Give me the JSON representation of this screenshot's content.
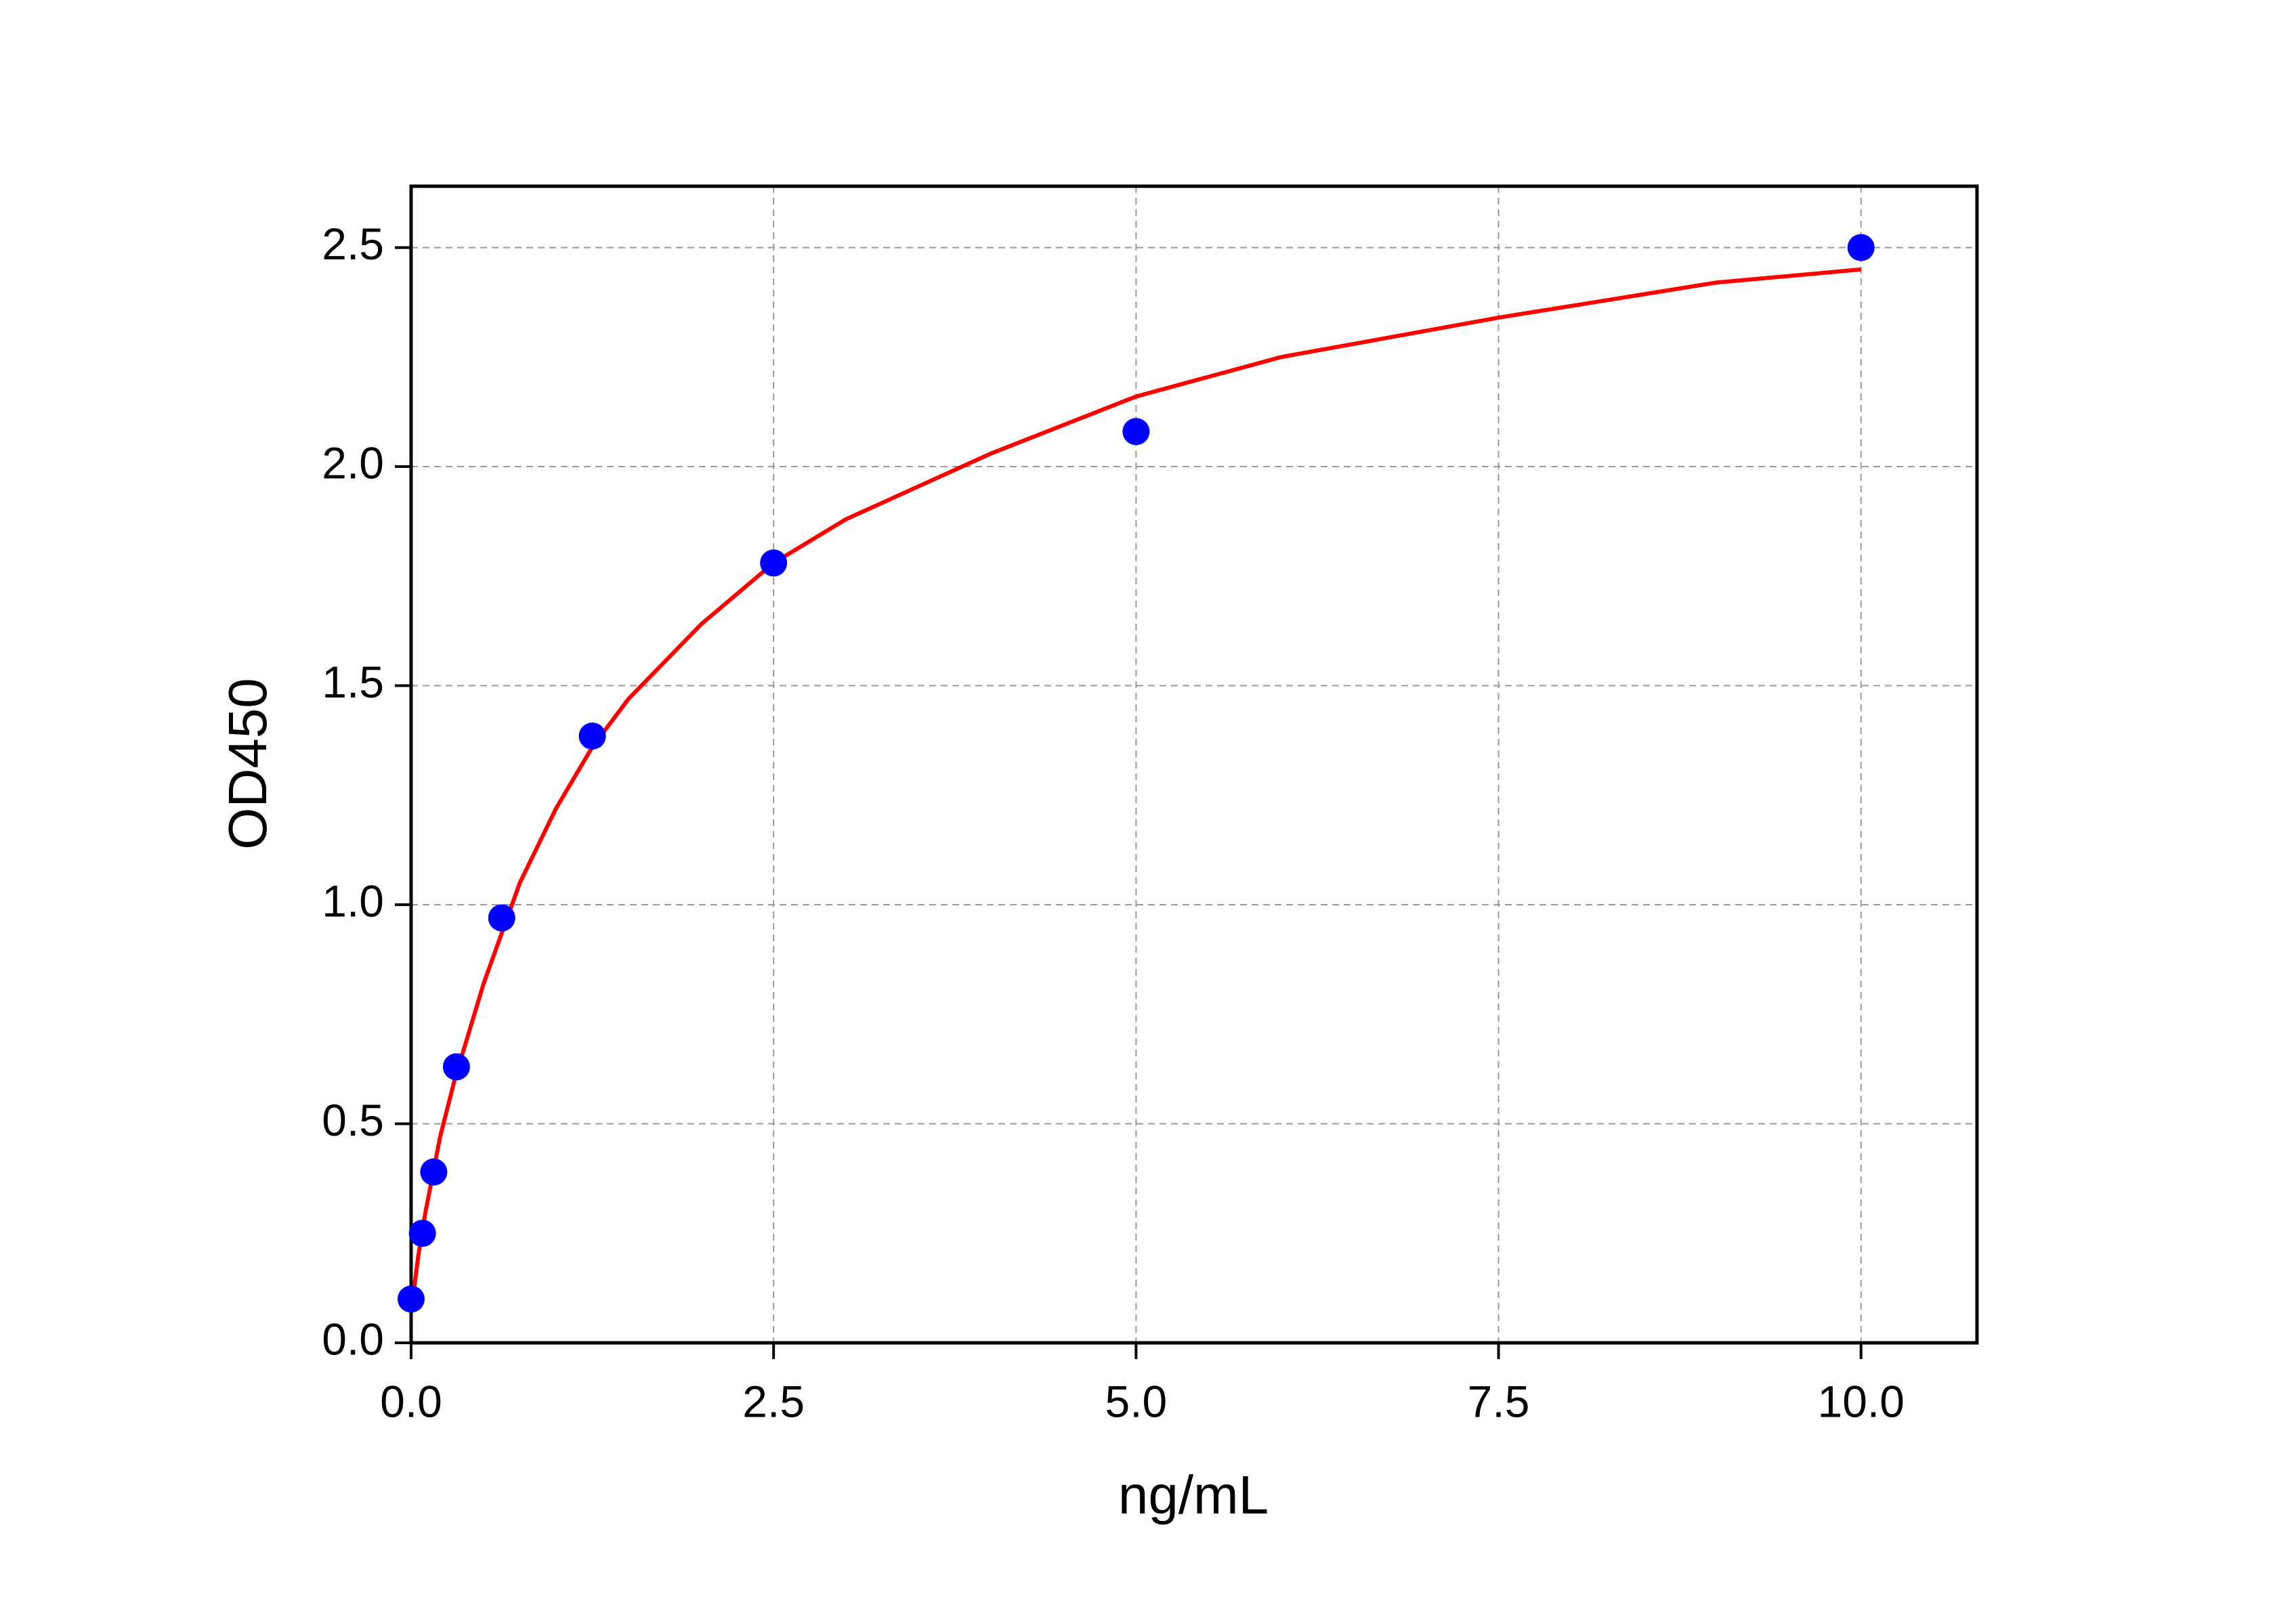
{
  "chart_data": {
    "type": "scatter",
    "x_label": "ng/mL",
    "y_label": "OD450",
    "xlim": [
      0,
      10.8
    ],
    "ylim": [
      0,
      2.64
    ],
    "xticks": [
      {
        "value": 0,
        "label": "0.0"
      },
      2.5,
      {
        "value": 5,
        "label": "5.0"
      },
      7.5,
      {
        "value": 10,
        "label": "10.0"
      }
    ],
    "yticks": [
      {
        "value": 0,
        "label": "0.0"
      },
      0.5,
      {
        "value": 1,
        "label": "1.0"
      },
      1.5,
      {
        "value": 2,
        "label": "2.0"
      },
      2.5
    ],
    "grid": true,
    "series": [
      {
        "type": "line",
        "color": "#ff0000",
        "x": [
          0,
          0.05,
          0.1,
          0.2,
          0.3,
          0.5,
          0.75,
          1,
          1.25,
          1.5,
          2,
          2.5,
          3,
          4,
          5,
          6,
          7.5,
          9,
          10
        ],
        "values": [
          0.07,
          0.2,
          0.3,
          0.47,
          0.6,
          0.82,
          1.05,
          1.22,
          1.36,
          1.47,
          1.64,
          1.78,
          1.88,
          2.03,
          2.16,
          2.25,
          2.34,
          2.42,
          2.45
        ]
      },
      {
        "type": "scatter",
        "color": "#0000ff",
        "x": [
          0,
          0.078,
          0.156,
          0.3125,
          0.625,
          1.25,
          2.5,
          5,
          10
        ],
        "values": [
          0.1,
          0.25,
          0.39,
          0.63,
          0.97,
          1.385,
          1.78,
          2.08,
          2.5
        ]
      }
    ]
  }
}
